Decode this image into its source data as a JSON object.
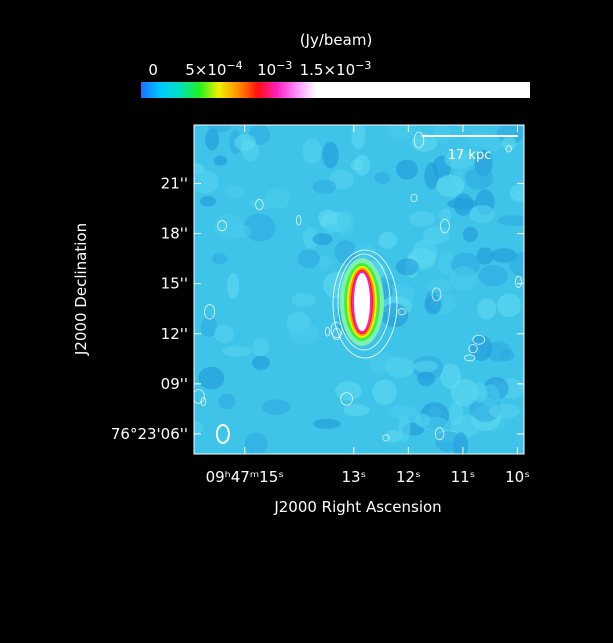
{
  "chart_data": {
    "type": "heatmap",
    "title": "",
    "colorbar": {
      "label": "(Jy/beam)",
      "ticks": [
        {
          "value": 0,
          "base": "0",
          "exp": ""
        },
        {
          "value": 0.0005,
          "base": "5×10",
          "exp": "−4"
        },
        {
          "value": 0.001,
          "base": "10",
          "exp": "−3"
        },
        {
          "value": 0.0015,
          "base": "1.5×10",
          "exp": "−3"
        }
      ],
      "range": [
        -0.0001,
        0.0031
      ],
      "colors": [
        "#1a6fff",
        "#00c8ff",
        "#00e0c0",
        "#20f020",
        "#f0f000",
        "#ff9000",
        "#ff1010",
        "#ff20c0",
        "#ff90ff",
        "#ffffff"
      ]
    },
    "xlabel": "J2000 Right Ascension",
    "ylabel": "J2000 Declination",
    "x_ticks": [
      {
        "value": 15,
        "text": "09ʰ47ᵐ15ˢ"
      },
      {
        "value": 13,
        "text": "13ˢ"
      },
      {
        "value": 12,
        "text": "12ˢ"
      },
      {
        "value": 11,
        "text": "11ˢ"
      },
      {
        "value": 10,
        "text": "10ˢ"
      }
    ],
    "y_ticks": [
      {
        "value": 21,
        "text": "21''"
      },
      {
        "value": 18,
        "text": "18''"
      },
      {
        "value": 15,
        "text": "15''"
      },
      {
        "value": 12,
        "text": "12''"
      },
      {
        "value": 9,
        "text": "09''"
      },
      {
        "value": 6,
        "text": "76°23'06''"
      }
    ],
    "xlim_sec": [
      15.93,
      9.88
    ],
    "ylim_arcsec": [
      4.8,
      24.5
    ],
    "background_color": "#3ec4e8",
    "scale_bar": {
      "label": "17 kpc",
      "length_arcsec": 5.0
    },
    "source": {
      "ra_sec": 12.85,
      "dec_arcsec": 13.9,
      "peak_jy": 0.003
    },
    "beam": {
      "ra_sec": 15.4,
      "dec_arcsec": 6.0
    }
  }
}
